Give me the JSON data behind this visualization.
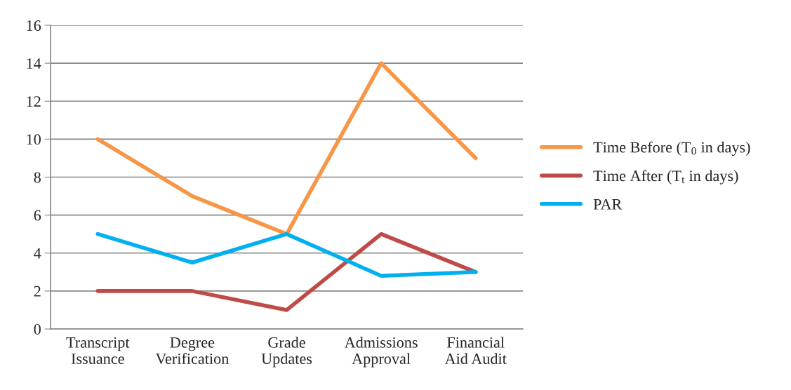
{
  "chart_data": {
    "type": "line",
    "categories": [
      "Transcript\nIssuance",
      "Degree\nVerification",
      "Grade\nUpdates",
      "Admissions\nApproval",
      "Financial\nAid Audit"
    ],
    "series": [
      {
        "name": "Time Before (T$_{0}$ in days)",
        "color": "#f79646",
        "values": [
          10,
          7,
          5,
          14,
          9
        ]
      },
      {
        "name": "Time After (T$_{t}$ in days)",
        "color": "#be4b48",
        "values": [
          2,
          2,
          1,
          5,
          3
        ]
      },
      {
        "name": "PAR",
        "color": "#00b0f0",
        "values": [
          5,
          3.5,
          5,
          2.8,
          3
        ]
      }
    ],
    "ylim": [
      0,
      16
    ],
    "yticks": [
      0,
      2,
      4,
      6,
      8,
      10,
      12,
      14,
      16
    ],
    "grid": "y",
    "legend": "right",
    "marker": "none",
    "line_style": "solid"
  }
}
